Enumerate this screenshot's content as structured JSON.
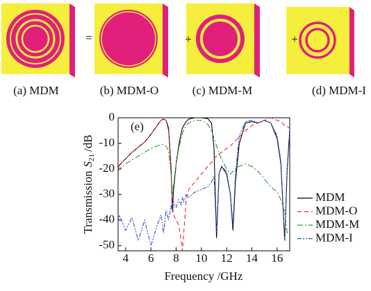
{
  "panels": [
    "(a) MDM",
    "(b) MDM-O",
    "(c) MDM-M",
    "(d) MDM-I"
  ],
  "operators": [
    "=",
    "+",
    "+"
  ],
  "chart_data": {
    "type": "line",
    "annotation": "(e)",
    "x_label": "Frequency /GHz",
    "y_label": [
      "Transmission",
      "S",
      "21",
      "/dB"
    ],
    "xlim": [
      3.4,
      17
    ],
    "xticks": [
      4,
      6,
      8,
      10,
      12,
      14,
      16
    ],
    "ylim": [
      -52,
      0
    ],
    "yticks": [
      0,
      -10,
      -20,
      -30,
      -40,
      -50
    ],
    "grid": false,
    "legend": "right",
    "x": [
      3.4,
      3.5,
      4,
      4.5,
      5,
      5.5,
      6,
      6.5,
      6.8,
      7,
      7.2,
      7.4,
      7.6,
      7.7,
      7.8,
      8,
      8.2,
      8.4,
      8.5,
      8.6,
      8.8,
      9,
      9.5,
      10,
      10.5,
      10.8,
      11,
      11.2,
      11.4,
      11.6,
      12,
      12.3,
      12.5,
      12.7,
      13,
      13.5,
      14,
      14.5,
      15,
      15.5,
      16,
      16.3,
      16.6,
      16.8,
      17
    ],
    "series": [
      {
        "name": "MDM",
        "color": "#000000",
        "dash": "solid",
        "values": [
          -20,
          -18.5,
          -16,
          -13.5,
          -11.5,
          -9.5,
          -6.5,
          -3,
          -1,
          -0.5,
          -1,
          -4,
          -20,
          -36,
          -28,
          -18,
          -11,
          -6,
          -4,
          -3,
          -1.5,
          -0.5,
          0,
          0,
          -0.3,
          -2,
          -12,
          -47,
          -22,
          -19,
          -22,
          -30,
          -44,
          -25,
          -10,
          -2,
          -1.5,
          -2,
          -1,
          -2,
          -8,
          -18,
          -48,
          -20,
          -5
        ]
      },
      {
        "name": "MDM-O",
        "color": "#e8262a",
        "dash": "dashed",
        "values": [
          -20,
          -18.5,
          -16,
          -13.5,
          -11.5,
          -9.5,
          -6.5,
          -3,
          -1,
          -0.5,
          -1,
          -5,
          -22,
          -34,
          -38,
          -40,
          -42,
          -48,
          -52,
          -45,
          -32,
          -28,
          -25,
          -22,
          -19,
          -17.5,
          -16,
          -15,
          -14,
          -13.5,
          -12,
          -11,
          -10,
          -9,
          -7.5,
          -5,
          -3,
          -2,
          -1,
          0,
          -1,
          -1.5,
          -3,
          -3.5,
          -4
        ]
      },
      {
        "name": "MDM-M",
        "color": "#2e9a2e",
        "dash": "dashdot",
        "values": [
          -21,
          -20,
          -18,
          -16.5,
          -15,
          -13.5,
          -12,
          -11,
          -10.5,
          -10.5,
          -11,
          -13,
          -22,
          -30,
          -26,
          -18,
          -12,
          -8,
          -6,
          -5,
          -3,
          -2,
          -1,
          -1,
          -2.5,
          -5,
          -8,
          -11,
          -14,
          -16,
          -20,
          -22,
          -21,
          -20,
          -19,
          -18,
          -19,
          -21,
          -24,
          -27,
          -29,
          -32,
          -37,
          -45,
          -44
        ]
      },
      {
        "name": "MDM-I",
        "color": "#2a4fc8",
        "dash": "dashdotdot",
        "values": [
          -41,
          -38,
          -44,
          -39,
          -48,
          -40,
          -50,
          -42,
          -38,
          -45,
          -36,
          -40,
          -34,
          -37,
          -33,
          -35,
          -32,
          -34,
          -31,
          -33,
          -30,
          -31,
          -29,
          -28,
          -27,
          -25,
          -23,
          -45,
          -22,
          -19,
          -21,
          -30,
          -42,
          -22,
          -7,
          -1.5,
          -1,
          -2,
          -1,
          -2,
          -7,
          -17,
          -48,
          -20,
          -6
        ]
      }
    ]
  }
}
